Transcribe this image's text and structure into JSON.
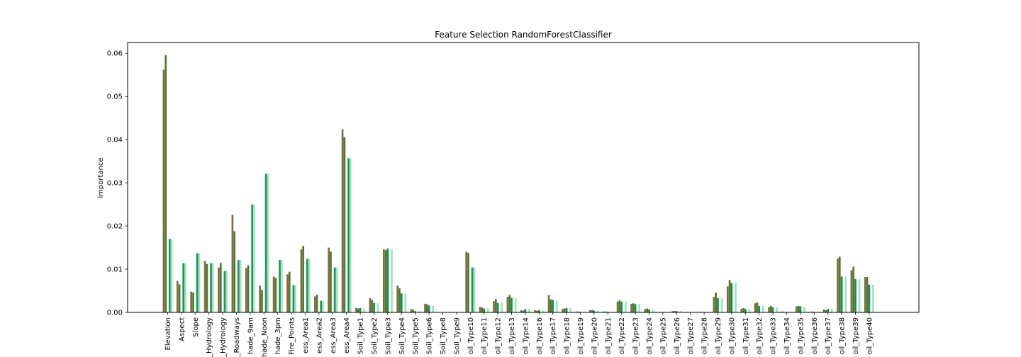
{
  "chart_data": {
    "type": "bar",
    "title": "Feature Selection RandomForestClassifier",
    "xlabel": "",
    "ylabel": "importance",
    "ylim": [
      0,
      0.0625
    ],
    "yticks": [
      0.0,
      0.01,
      0.02,
      0.03,
      0.04,
      0.05,
      0.06
    ],
    "ytick_labels": [
      "0.00",
      "0.01",
      "0.02",
      "0.03",
      "0.04",
      "0.05",
      "0.06"
    ],
    "grid": false,
    "categories": [
      "Elevation",
      "Aspect",
      "Slope",
      "_Hydrology",
      "_Hydrology",
      "_Roadways",
      "hade_9am",
      "hade_Noon",
      "hade_3pm",
      "Fire_Points",
      "ess_Area1",
      "ess_Area2",
      "ess_Area3",
      "ess_Area4",
      "Soil_Type1",
      "Soil_Type2",
      "Soil_Type3",
      "Soil_Type4",
      "Soil_Type5",
      "Soil_Type6",
      "Soil_Type8",
      "Soil_Type9",
      "oil_Type10",
      "oil_Type11",
      "oil_Type12",
      "oil_Type13",
      "oil_Type14",
      "oil_Type16",
      "oil_Type17",
      "oil_Type18",
      "oil_Type19",
      "oil_Type20",
      "oil_Type21",
      "oil_Type22",
      "oil_Type23",
      "oil_Type24",
      "oil_Type25",
      "oil_Type26",
      "oil_Type27",
      "oil_Type28",
      "oil_Type29",
      "oil_Type30",
      "oil_Type31",
      "oil_Type32",
      "oil_Type33",
      "oil_Type34",
      "oil_Type35",
      "oil_Type36",
      "oil_Type37",
      "oil_Type38",
      "oil_Type39",
      "oil_Type40"
    ],
    "series": [
      {
        "color": "#7f6a4f",
        "values": [
          0.0562,
          0.0073,
          0.0048,
          0.0119,
          0.0104,
          0.0226,
          0.0103,
          0.0062,
          0.0083,
          0.0088,
          0.0146,
          0.0037,
          0.015,
          0.0424,
          0.001,
          0.0033,
          0.0146,
          0.0062,
          0.0008,
          0.002,
          0.0,
          0.0,
          0.014,
          0.0013,
          0.0026,
          0.0036,
          0.0005,
          0.0005,
          0.004,
          0.0008,
          0.0002,
          0.0005,
          0.0002,
          0.0025,
          0.002,
          0.0008,
          0.0001,
          0.0003,
          0.0001,
          0.0001,
          0.0036,
          0.006,
          0.0008,
          0.0021,
          0.0012,
          0.0002,
          0.0014,
          0.0001,
          0.0007,
          0.0125,
          0.0098,
          0.0082
        ]
      },
      {
        "color": "#55792a",
        "values": [
          0.0596,
          0.0065,
          0.0046,
          0.0112,
          0.0115,
          0.0188,
          0.0109,
          0.0052,
          0.008,
          0.0094,
          0.0154,
          0.0041,
          0.0141,
          0.0406,
          0.0009,
          0.0029,
          0.0144,
          0.0056,
          0.0006,
          0.0019,
          0.0,
          0.0,
          0.0138,
          0.0011,
          0.0031,
          0.004,
          0.0004,
          0.0004,
          0.003,
          0.0009,
          0.0002,
          0.0006,
          0.0002,
          0.0028,
          0.0021,
          0.0009,
          0.0001,
          0.0003,
          0.0001,
          0.0001,
          0.0046,
          0.0075,
          0.001,
          0.0023,
          0.0015,
          0.0001,
          0.0015,
          0.0002,
          0.0005,
          0.0129,
          0.0106,
          0.0082
        ]
      },
      {
        "color": "#1f8a4c",
        "values": [
          0.0,
          0.0,
          0.0,
          0.0,
          0.0,
          0.0,
          0.0,
          0.0,
          0.0,
          0.0,
          0.0,
          0.0,
          0.0,
          0.0,
          0.001,
          0.0022,
          0.0148,
          0.0044,
          0.0003,
          0.0016,
          0.0,
          0.0,
          0.0,
          0.0009,
          0.0022,
          0.0034,
          0.0008,
          0.0005,
          0.0029,
          0.001,
          0.0,
          0.0004,
          0.0001,
          0.0025,
          0.0019,
          0.0007,
          0.0,
          0.0003,
          0.0,
          0.0,
          0.0033,
          0.0068,
          0.0008,
          0.0015,
          0.0012,
          0.0001,
          0.0014,
          0.0001,
          0.0008,
          0.0083,
          0.0077,
          0.0064
        ]
      },
      {
        "color": "#2e8b57",
        "values": [
          0.017,
          0.0114,
          0.0137,
          0.0114,
          0.0096,
          0.0121,
          0.025,
          0.0321,
          0.0121,
          0.0063,
          0.0124,
          0.0027,
          0.0104,
          0.0357,
          0.0,
          0.0,
          0.0,
          0.0,
          0.0,
          0.0,
          0.0,
          0.0,
          0.0104,
          0.0,
          0.0,
          0.0,
          0.0,
          0.0,
          0.0,
          0.0,
          0.0,
          0.0,
          0.0,
          0.0,
          0.0,
          0.0,
          0.0,
          0.0,
          0.0,
          0.0,
          0.0,
          0.0,
          0.0,
          0.0,
          0.0,
          0.0,
          0.0,
          0.0,
          0.0,
          0.0,
          0.0,
          0.0
        ]
      },
      {
        "color": "#90eebc",
        "values": [
          0.017,
          0.0114,
          0.0137,
          0.0114,
          0.0096,
          0.0121,
          0.025,
          0.0321,
          0.0121,
          0.0063,
          0.0124,
          0.0027,
          0.0104,
          0.0357,
          0.0009,
          0.0021,
          0.0147,
          0.0044,
          0.0003,
          0.0015,
          0.0,
          0.0,
          0.0104,
          0.001,
          0.0023,
          0.0033,
          0.0008,
          0.0004,
          0.0028,
          0.001,
          0.0001,
          0.0004,
          0.0001,
          0.0025,
          0.0019,
          0.0007,
          0.0001,
          0.0003,
          0.0001,
          0.0001,
          0.0033,
          0.0069,
          0.0008,
          0.0015,
          0.0012,
          0.0001,
          0.0013,
          0.0001,
          0.0008,
          0.0083,
          0.0077,
          0.0064
        ]
      }
    ]
  }
}
